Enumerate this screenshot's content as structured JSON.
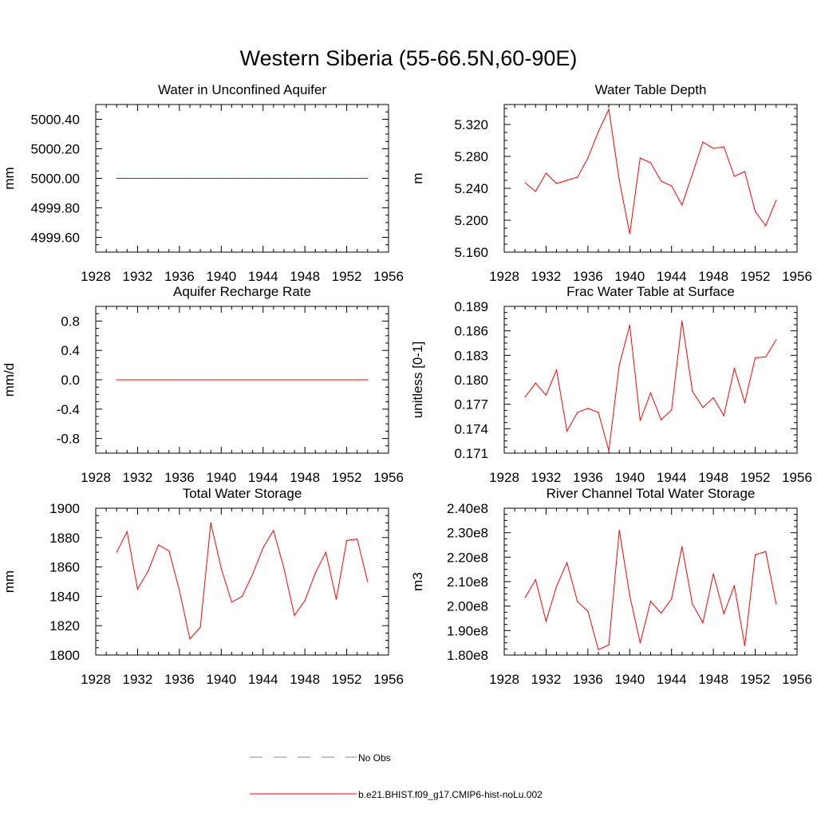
{
  "figure": {
    "title": "Western Siberia (55-66.5N,60-90E)",
    "legend": [
      {
        "label": "No Obs",
        "color": "#8080c0",
        "style": "dashed"
      },
      {
        "label": "b.e21.BHIST.f09_g17.CMIP6-hist-noLu.002",
        "color": "#ff0000",
        "style": "solid"
      }
    ],
    "series_color": "#ff0000"
  },
  "chart_data": [
    {
      "type": "line",
      "title": "Water in Unconfined Aquifer",
      "ylabel": "mm",
      "xlim": [
        1928,
        1956
      ],
      "ylim": [
        4999.5,
        5000.5
      ],
      "xticks": [
        1928,
        1932,
        1936,
        1940,
        1944,
        1948,
        1952,
        1956
      ],
      "xtick_labels": [
        "1928",
        "1932",
        "1936",
        "1940",
        "1944",
        "1948",
        "1952",
        "1956"
      ],
      "yticks": [
        4999.6,
        4999.8,
        5000.0,
        5000.2,
        5000.4
      ],
      "ytick_labels": [
        "4999.60",
        "4999.80",
        "5000.00",
        "5000.20",
        "5000.40"
      ],
      "x": [
        1930,
        1931,
        1932,
        1933,
        1934,
        1935,
        1936,
        1937,
        1938,
        1939,
        1940,
        1941,
        1942,
        1943,
        1944,
        1945,
        1946,
        1947,
        1948,
        1949,
        1950,
        1951,
        1952,
        1953,
        1954
      ],
      "values": [
        5000,
        5000,
        5000,
        5000,
        5000,
        5000,
        5000,
        5000,
        5000,
        5000,
        5000,
        5000,
        5000,
        5000,
        5000,
        5000,
        5000,
        5000,
        5000,
        5000,
        5000,
        5000,
        5000,
        5000,
        5000
      ]
    },
    {
      "type": "line",
      "title": "Water Table Depth",
      "ylabel": "m",
      "xlim": [
        1928,
        1956
      ],
      "ylim": [
        5.16,
        5.345
      ],
      "xticks": [
        1928,
        1932,
        1936,
        1940,
        1944,
        1948,
        1952,
        1956
      ],
      "xtick_labels": [
        "1928",
        "1932",
        "1936",
        "1940",
        "1944",
        "1948",
        "1952",
        "1956"
      ],
      "yticks": [
        5.16,
        5.2,
        5.24,
        5.28,
        5.32
      ],
      "ytick_labels": [
        "5.160",
        "5.200",
        "5.240",
        "5.280",
        "5.320"
      ],
      "x": [
        1930,
        1931,
        1932,
        1933,
        1934,
        1935,
        1936,
        1937,
        1938,
        1939,
        1940,
        1941,
        1942,
        1943,
        1944,
        1945,
        1946,
        1947,
        1948,
        1949,
        1950,
        1951,
        1952,
        1953,
        1954
      ],
      "values": [
        5.247,
        5.236,
        5.259,
        5.246,
        5.25,
        5.254,
        5.278,
        5.311,
        5.339,
        5.25,
        5.183,
        5.278,
        5.272,
        5.249,
        5.243,
        5.219,
        5.258,
        5.298,
        5.29,
        5.292,
        5.255,
        5.261,
        5.211,
        5.193,
        5.225
      ]
    },
    {
      "type": "line",
      "title": "Aquifer Recharge Rate",
      "ylabel": "mm/d",
      "xlim": [
        1928,
        1956
      ],
      "ylim": [
        -1.0,
        1.0
      ],
      "xticks": [
        1928,
        1932,
        1936,
        1940,
        1944,
        1948,
        1952,
        1956
      ],
      "xtick_labels": [
        "1928",
        "1932",
        "1936",
        "1940",
        "1944",
        "1948",
        "1952",
        "1956"
      ],
      "yticks": [
        -0.8,
        -0.4,
        0.0,
        0.4,
        0.8
      ],
      "ytick_labels": [
        "-0.8",
        "-0.4",
        "0.0",
        "0.4",
        "0.8"
      ],
      "x": [
        1930,
        1931,
        1932,
        1933,
        1934,
        1935,
        1936,
        1937,
        1938,
        1939,
        1940,
        1941,
        1942,
        1943,
        1944,
        1945,
        1946,
        1947,
        1948,
        1949,
        1950,
        1951,
        1952,
        1953,
        1954
      ],
      "values": [
        0,
        0,
        0,
        0,
        0,
        0,
        0,
        0,
        0,
        0,
        0,
        0,
        0,
        0,
        0,
        0,
        0,
        0,
        0,
        0,
        0,
        0,
        0,
        0,
        0
      ]
    },
    {
      "type": "line",
      "title": "Frac Water Table at Surface",
      "ylabel": "unitless [0-1]",
      "xlim": [
        1928,
        1956
      ],
      "ylim": [
        0.171,
        0.189
      ],
      "xticks": [
        1928,
        1932,
        1936,
        1940,
        1944,
        1948,
        1952,
        1956
      ],
      "xtick_labels": [
        "1928",
        "1932",
        "1936",
        "1940",
        "1944",
        "1948",
        "1952",
        "1956"
      ],
      "yticks": [
        0.171,
        0.174,
        0.177,
        0.18,
        0.183,
        0.186,
        0.189
      ],
      "ytick_labels": [
        "0.171",
        "0.174",
        "0.177",
        "0.180",
        "0.183",
        "0.186",
        "0.189"
      ],
      "x": [
        1930,
        1931,
        1932,
        1933,
        1934,
        1935,
        1936,
        1937,
        1938,
        1939,
        1940,
        1941,
        1942,
        1943,
        1944,
        1945,
        1946,
        1947,
        1948,
        1949,
        1950,
        1951,
        1952,
        1953,
        1954
      ],
      "values": [
        0.1779,
        0.1796,
        0.1781,
        0.1812,
        0.1737,
        0.176,
        0.1765,
        0.176,
        0.1713,
        0.1818,
        0.1867,
        0.175,
        0.1784,
        0.1751,
        0.1763,
        0.1872,
        0.1786,
        0.1766,
        0.1778,
        0.1756,
        0.1814,
        0.1772,
        0.1827,
        0.1828,
        0.1849
      ]
    },
    {
      "type": "line",
      "title": "Total Water Storage",
      "ylabel": "mm",
      "xlim": [
        1928,
        1956
      ],
      "ylim": [
        1800,
        1900
      ],
      "xticks": [
        1928,
        1932,
        1936,
        1940,
        1944,
        1948,
        1952,
        1956
      ],
      "xtick_labels": [
        "1928",
        "1932",
        "1936",
        "1940",
        "1944",
        "1948",
        "1952",
        "1956"
      ],
      "yticks": [
        1800,
        1820,
        1840,
        1860,
        1880,
        1900
      ],
      "ytick_labels": [
        "1800",
        "1820",
        "1840",
        "1860",
        "1880",
        "1900"
      ],
      "x": [
        1930,
        1931,
        1932,
        1933,
        1934,
        1935,
        1936,
        1937,
        1938,
        1939,
        1940,
        1941,
        1942,
        1943,
        1944,
        1945,
        1946,
        1947,
        1948,
        1949,
        1950,
        1951,
        1952,
        1953,
        1954
      ],
      "values": [
        1870,
        1884,
        1845,
        1857,
        1875,
        1871,
        1844,
        1811,
        1819,
        1890,
        1859,
        1836,
        1840,
        1855,
        1873,
        1885,
        1859,
        1827,
        1837,
        1856,
        1870,
        1838,
        1878,
        1879,
        1850
      ]
    },
    {
      "type": "line",
      "title": "River Channel Total Water Storage",
      "ylabel": "m3",
      "xlim": [
        1928,
        1956
      ],
      "ylim": [
        180000000,
        240000000
      ],
      "xticks": [
        1928,
        1932,
        1936,
        1940,
        1944,
        1948,
        1952,
        1956
      ],
      "xtick_labels": [
        "1928",
        "1932",
        "1936",
        "1940",
        "1944",
        "1948",
        "1952",
        "1956"
      ],
      "yticks": [
        180000000,
        190000000,
        200000000,
        210000000,
        220000000,
        230000000,
        240000000
      ],
      "ytick_labels": [
        "1.80e8",
        "1.90e8",
        "2.00e8",
        "2.10e8",
        "2.20e8",
        "2.30e8",
        "2.40e8"
      ],
      "x": [
        1930,
        1931,
        1932,
        1933,
        1934,
        1935,
        1936,
        1937,
        1938,
        1939,
        1940,
        1941,
        1942,
        1943,
        1944,
        1945,
        1946,
        1947,
        1948,
        1949,
        1950,
        1951,
        1952,
        1953,
        1954
      ],
      "values": [
        203500000,
        210800000,
        193800000,
        208000000,
        217800000,
        201800000,
        197900000,
        182200000,
        184200000,
        231000000,
        204300000,
        185000000,
        202000000,
        197100000,
        203000000,
        224300000,
        200800000,
        193200000,
        213200000,
        196900000,
        208300000,
        183800000,
        221000000,
        222300000,
        200900000
      ]
    }
  ]
}
